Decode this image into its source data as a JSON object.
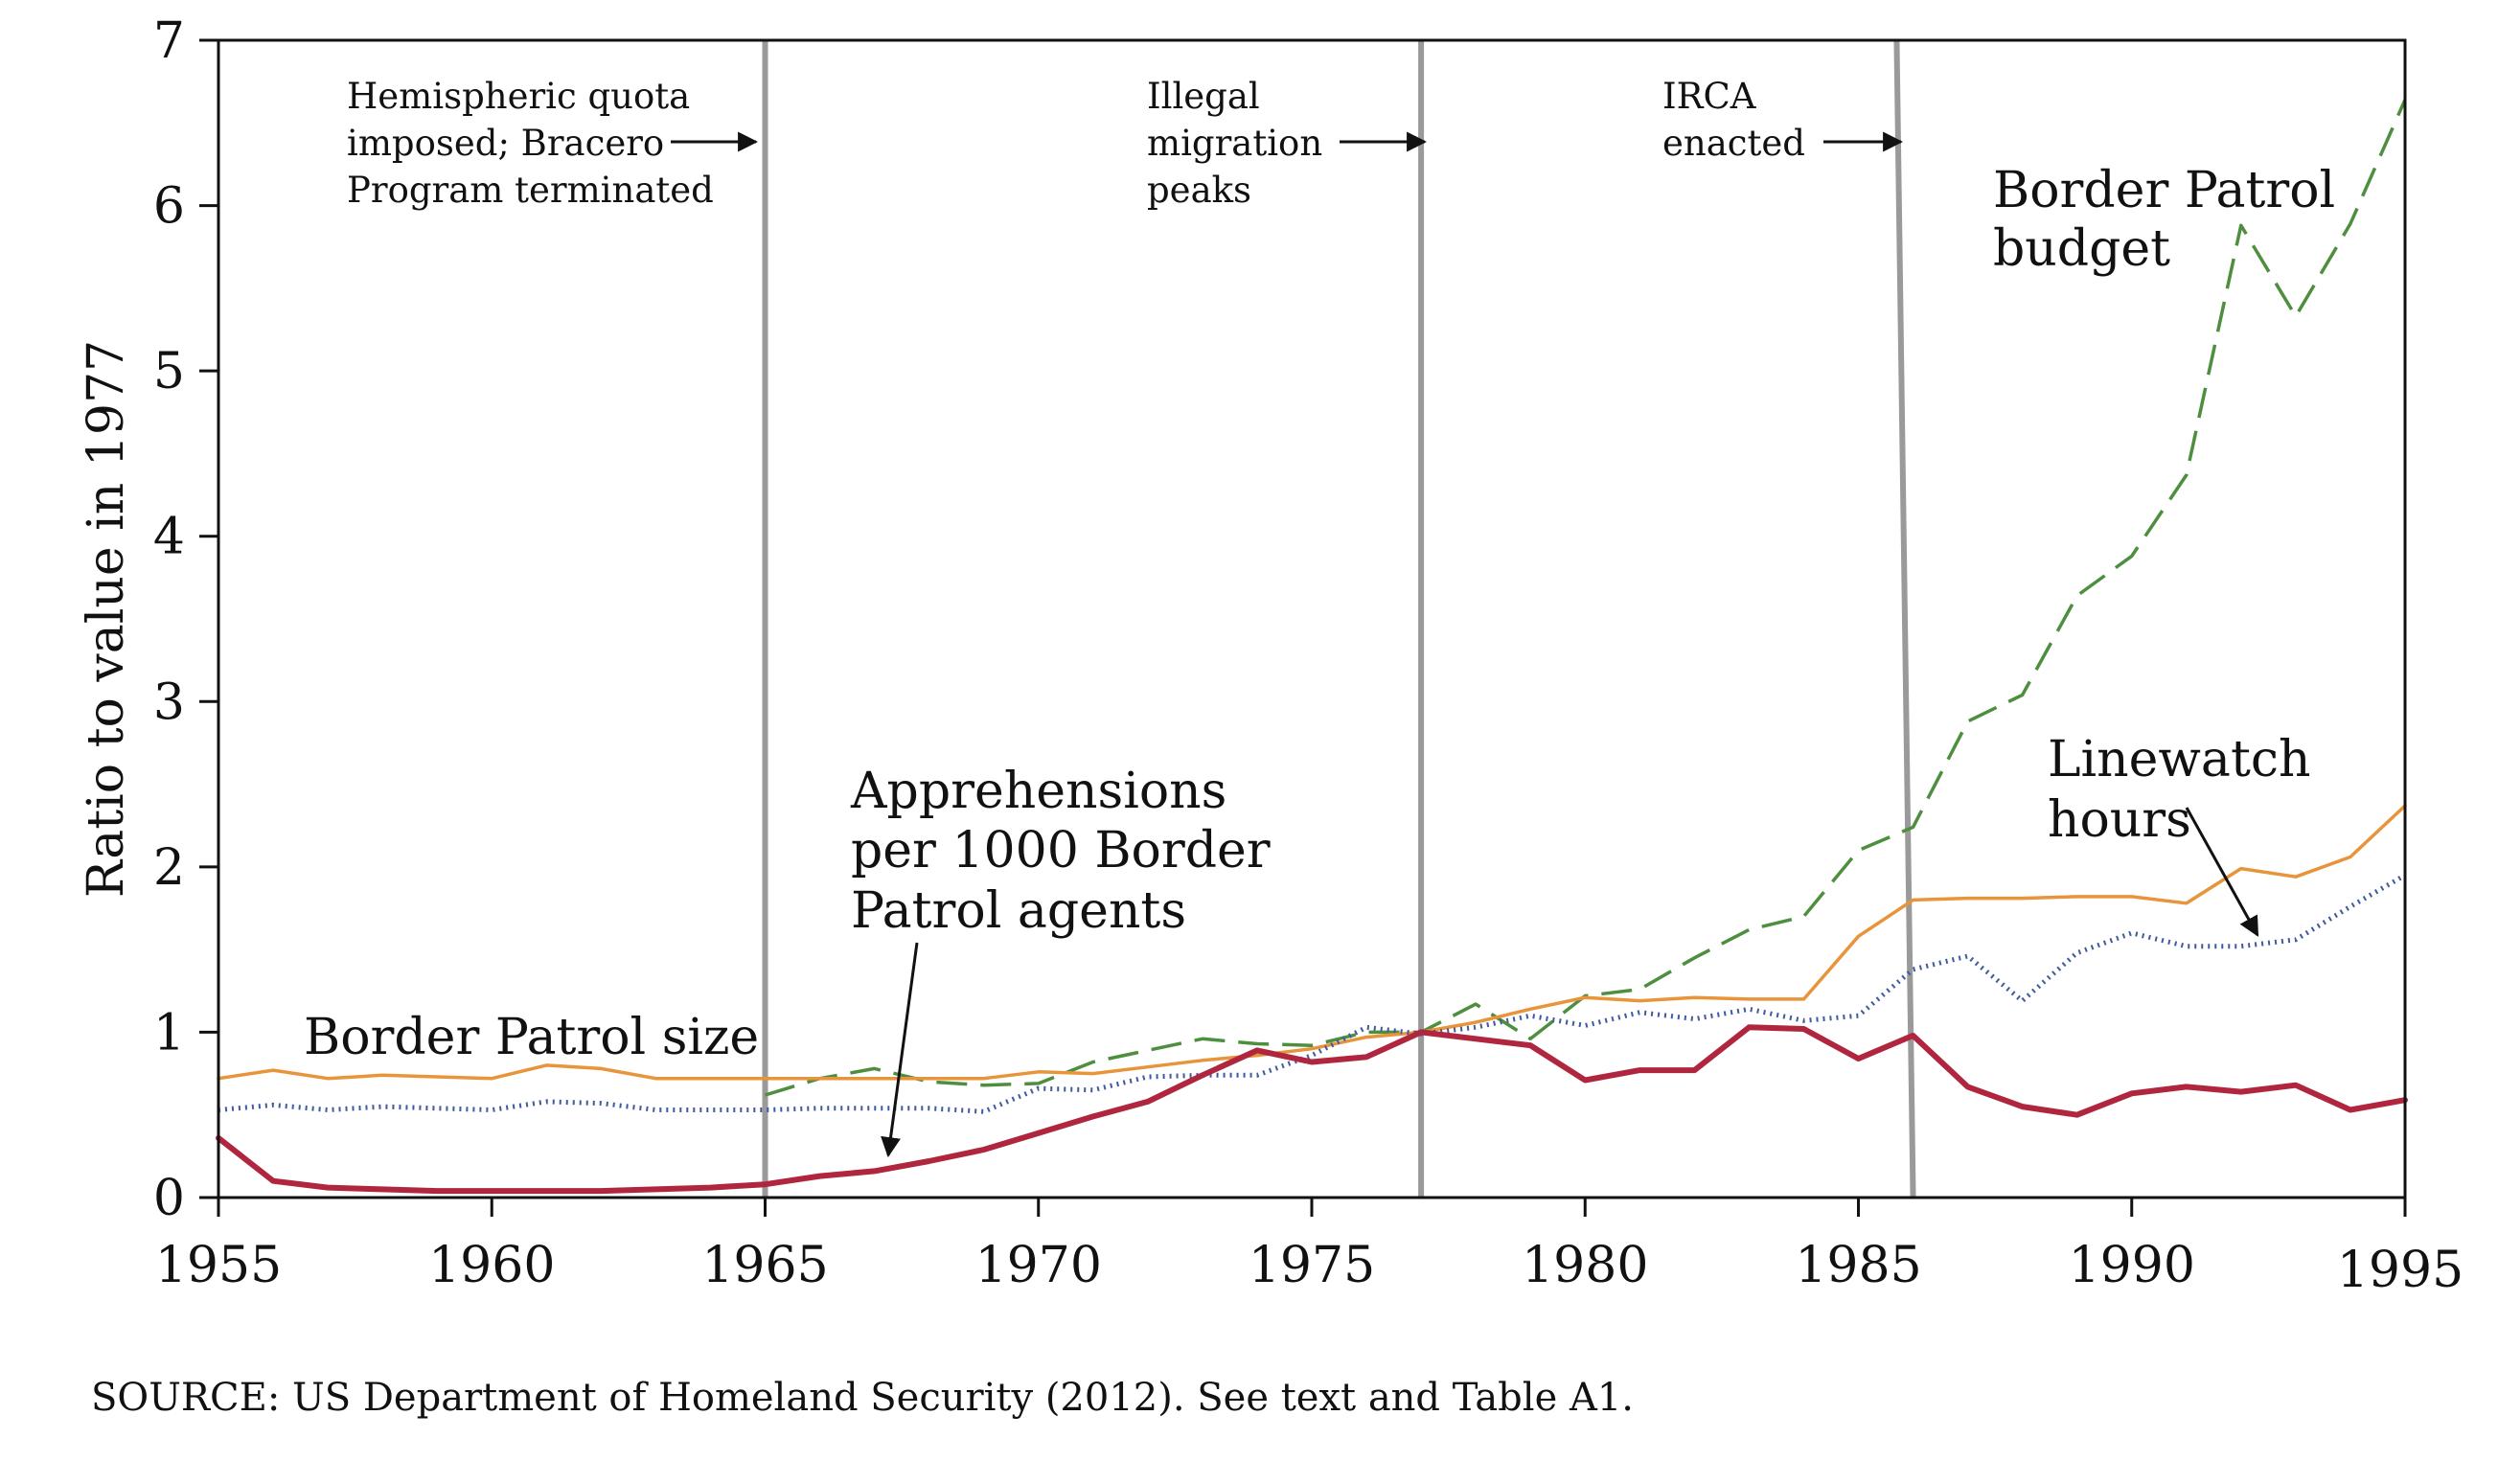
{
  "source_note": "SOURCE: US Department of Homeland Security (2012). See text and Table A1.",
  "chart_data": {
    "type": "line",
    "xlabel": "",
    "ylabel": "Ratio to value in 1977",
    "xlim": [
      1955,
      1995
    ],
    "ylim": [
      0,
      7
    ],
    "x_ticks": [
      "1955",
      "1960",
      "1965",
      "1970",
      "1975",
      "1980",
      "1985",
      "1990",
      "1995"
    ],
    "y_ticks": [
      "0",
      "1",
      "2",
      "3",
      "4",
      "5",
      "6",
      "7"
    ],
    "grid": false,
    "x": [
      1955,
      1956,
      1957,
      1958,
      1959,
      1960,
      1961,
      1962,
      1963,
      1964,
      1965,
      1966,
      1967,
      1968,
      1969,
      1970,
      1971,
      1972,
      1973,
      1974,
      1975,
      1976,
      1977,
      1978,
      1979,
      1980,
      1981,
      1982,
      1983,
      1984,
      1985,
      1986,
      1987,
      1988,
      1989,
      1990,
      1991,
      1992,
      1993,
      1994,
      1995
    ],
    "series": [
      {
        "name": "Apprehensions per 1000 Border Patrol agents",
        "color": "#b0263e",
        "style": "solid-thick",
        "values": [
          0.36,
          0.1,
          0.06,
          0.05,
          0.04,
          0.04,
          0.04,
          0.04,
          0.05,
          0.06,
          0.08,
          0.13,
          0.16,
          0.22,
          0.29,
          0.39,
          0.49,
          0.58,
          0.74,
          0.89,
          0.82,
          0.85,
          1.0,
          0.96,
          0.92,
          0.71,
          0.77,
          0.77,
          1.03,
          1.02,
          0.84,
          0.98,
          0.67,
          0.55,
          0.5,
          0.63,
          0.67,
          0.64,
          0.68,
          0.53,
          0.59
        ]
      },
      {
        "name": "Border Patrol size",
        "color": "#e8943a",
        "style": "solid-thin",
        "values": [
          0.72,
          0.77,
          0.72,
          0.74,
          0.73,
          0.72,
          0.8,
          0.78,
          0.72,
          0.72,
          0.72,
          0.72,
          0.72,
          0.72,
          0.72,
          0.76,
          0.75,
          0.79,
          0.83,
          0.86,
          0.9,
          0.97,
          1.0,
          1.06,
          1.14,
          1.21,
          1.19,
          1.21,
          1.2,
          1.2,
          1.58,
          1.8,
          1.81,
          1.81,
          1.82,
          1.82,
          1.78,
          1.99,
          1.94,
          2.06,
          2.37
        ]
      },
      {
        "name": "Linewatch hours",
        "color": "#3f5a9e",
        "style": "dotted",
        "values": [
          0.53,
          0.56,
          0.53,
          0.55,
          0.54,
          0.53,
          0.58,
          0.57,
          0.53,
          0.53,
          0.53,
          0.54,
          0.54,
          0.54,
          0.52,
          0.66,
          0.65,
          0.73,
          0.74,
          0.74,
          0.86,
          1.03,
          0.99,
          1.03,
          1.1,
          1.04,
          1.12,
          1.08,
          1.14,
          1.07,
          1.1,
          1.38,
          1.46,
          1.19,
          1.48,
          1.6,
          1.52,
          1.52,
          1.56,
          1.76,
          1.95
        ]
      },
      {
        "name": "Border Patrol budget",
        "color": "#4e8f3f",
        "style": "dashed",
        "start_index": 10,
        "values": [
          null,
          null,
          null,
          null,
          null,
          null,
          null,
          null,
          null,
          null,
          0.62,
          0.72,
          0.78,
          0.7,
          0.68,
          0.69,
          0.82,
          0.89,
          0.96,
          0.93,
          0.92,
          1.0,
          1.0,
          1.17,
          0.96,
          1.22,
          1.26,
          1.45,
          1.62,
          1.7,
          2.1,
          2.24,
          2.88,
          3.04,
          3.64,
          3.88,
          4.37,
          5.88,
          5.33,
          5.89,
          6.64
        ]
      }
    ],
    "events": [
      {
        "year_top": 1965.0,
        "year_bottom": 1965.0,
        "label_lines": [
          "Hemispheric quota",
          "imposed; Bracero",
          "Program terminated"
        ]
      },
      {
        "year_top": 1977.0,
        "year_bottom": 1977.0,
        "label_lines": [
          "Illegal",
          "migration",
          "peaks"
        ]
      },
      {
        "year_top": 1985.7,
        "year_bottom": 1986.0,
        "label_lines": [
          "IRCA",
          "enacted"
        ]
      }
    ],
    "annotations": {
      "budget_label": [
        "Border Patrol",
        "budget"
      ],
      "linewatch_label": [
        "Linewatch",
        "hours"
      ],
      "apprehensions_label": [
        "Apprehensions",
        "per 1000 Border",
        "Patrol agents"
      ],
      "size_label": "Border Patrol size"
    }
  }
}
